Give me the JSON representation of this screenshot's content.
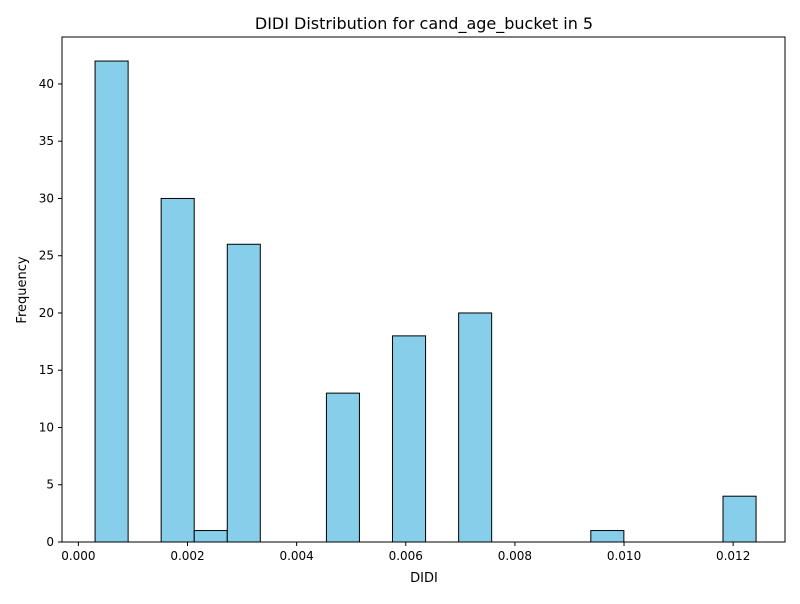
{
  "chart_data": {
    "type": "bar",
    "title": "DIDI Distribution for cand_age_bucket in 5",
    "xlabel": "DIDI",
    "ylabel": "Frequency",
    "xlim": [
      -0.0003,
      0.01295
    ],
    "ylim": [
      0,
      44.1
    ],
    "x_ticks": [
      {
        "value": 0.0,
        "label": "0.000"
      },
      {
        "value": 0.002,
        "label": "0.002"
      },
      {
        "value": 0.004,
        "label": "0.004"
      },
      {
        "value": 0.006,
        "label": "0.006"
      },
      {
        "value": 0.008,
        "label": "0.008"
      },
      {
        "value": 0.01,
        "label": "0.010"
      },
      {
        "value": 0.012,
        "label": "0.012"
      }
    ],
    "y_ticks": [
      {
        "value": 0,
        "label": "0"
      },
      {
        "value": 5,
        "label": "5"
      },
      {
        "value": 10,
        "label": "10"
      },
      {
        "value": 15,
        "label": "15"
      },
      {
        "value": 20,
        "label": "20"
      },
      {
        "value": 25,
        "label": "25"
      },
      {
        "value": 30,
        "label": "30"
      },
      {
        "value": 35,
        "label": "35"
      },
      {
        "value": 40,
        "label": "40"
      }
    ],
    "bins": [
      {
        "x0": 0.000306,
        "x1": 0.000912,
        "count": 42
      },
      {
        "x0": 0.000912,
        "x1": 0.001517,
        "count": 0
      },
      {
        "x0": 0.001517,
        "x1": 0.002123,
        "count": 30
      },
      {
        "x0": 0.002123,
        "x1": 0.002729,
        "count": 1
      },
      {
        "x0": 0.002729,
        "x1": 0.003334,
        "count": 26
      },
      {
        "x0": 0.003334,
        "x1": 0.00394,
        "count": 0
      },
      {
        "x0": 0.00394,
        "x1": 0.004546,
        "count": 0
      },
      {
        "x0": 0.004546,
        "x1": 0.005151,
        "count": 13
      },
      {
        "x0": 0.005151,
        "x1": 0.005757,
        "count": 0
      },
      {
        "x0": 0.005757,
        "x1": 0.006363,
        "count": 18
      },
      {
        "x0": 0.006363,
        "x1": 0.006969,
        "count": 0
      },
      {
        "x0": 0.006969,
        "x1": 0.007574,
        "count": 20
      },
      {
        "x0": 0.007574,
        "x1": 0.00818,
        "count": 0
      },
      {
        "x0": 0.00818,
        "x1": 0.008786,
        "count": 0
      },
      {
        "x0": 0.008786,
        "x1": 0.009391,
        "count": 0
      },
      {
        "x0": 0.009391,
        "x1": 0.009997,
        "count": 1
      },
      {
        "x0": 0.009997,
        "x1": 0.010603,
        "count": 0
      },
      {
        "x0": 0.010603,
        "x1": 0.011208,
        "count": 0
      },
      {
        "x0": 0.011208,
        "x1": 0.011814,
        "count": 0
      },
      {
        "x0": 0.011814,
        "x1": 0.01242,
        "count": 4
      }
    ],
    "bar_color": "#87CEEB",
    "edge_color": "#000000",
    "grid": false,
    "legend": "none"
  }
}
